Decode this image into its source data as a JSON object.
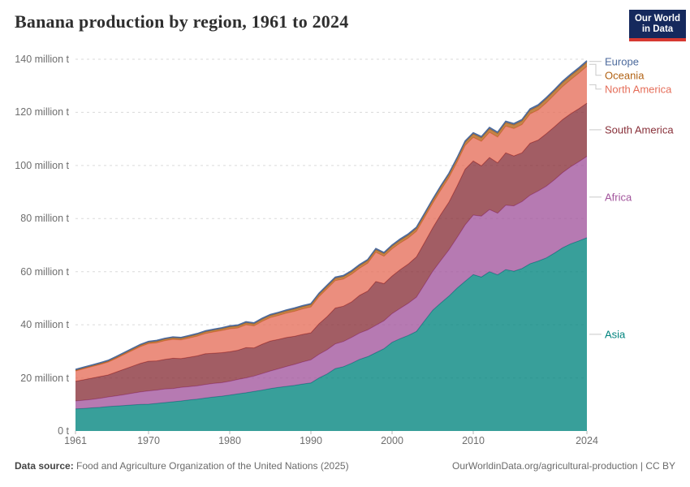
{
  "title": "Banana production by region, 1961 to 2024",
  "logo": {
    "line1": "Our World",
    "line2": "in Data"
  },
  "footer": {
    "source_label": "Data source:",
    "source_text": " Food and Agriculture Organization of the United Nations (2025)",
    "attribution": "OurWorldinData.org/agricultural-production | CC BY"
  },
  "chart_data": {
    "type": "area",
    "stacked": true,
    "title": "Banana production by region, 1961 to 2024",
    "unit": "million tonnes",
    "ylim": [
      0,
      140
    ],
    "grid": "dashed horizontal gridlines every 20 million t",
    "legend_position": "right edge, labels colored by series, top-to-bottom Europe/Oceania/North America/South America/Africa/Asia",
    "y_ticks": [
      {
        "value": 0,
        "label": "0 t"
      },
      {
        "value": 20,
        "label": "20 million t"
      },
      {
        "value": 40,
        "label": "40 million t"
      },
      {
        "value": 60,
        "label": "60 million t"
      },
      {
        "value": 80,
        "label": "80 million t"
      },
      {
        "value": 100,
        "label": "100 million t"
      },
      {
        "value": 120,
        "label": "120 million t"
      },
      {
        "value": 140,
        "label": "140 million t"
      }
    ],
    "x_ticks": [
      1961,
      1970,
      1980,
      1990,
      2000,
      2010,
      2024
    ],
    "years": [
      1961,
      1962,
      1963,
      1964,
      1965,
      1966,
      1967,
      1968,
      1969,
      1970,
      1971,
      1972,
      1973,
      1974,
      1975,
      1976,
      1977,
      1978,
      1979,
      1980,
      1981,
      1982,
      1983,
      1984,
      1985,
      1986,
      1987,
      1988,
      1989,
      1990,
      1991,
      1992,
      1993,
      1994,
      1995,
      1996,
      1997,
      1998,
      1999,
      2000,
      2001,
      2002,
      2003,
      2004,
      2005,
      2006,
      2007,
      2008,
      2009,
      2010,
      2011,
      2012,
      2013,
      2014,
      2015,
      2016,
      2017,
      2018,
      2019,
      2020,
      2021,
      2022,
      2023,
      2024
    ],
    "series": [
      {
        "name": "Asia",
        "color": "#00847E",
        "values": [
          8.3,
          8.5,
          8.7,
          8.9,
          9.2,
          9.4,
          9.6,
          9.8,
          10.0,
          10.1,
          10.4,
          10.7,
          11.0,
          11.3,
          11.7,
          12.0,
          12.4,
          12.8,
          13.1,
          13.5,
          14.0,
          14.4,
          14.9,
          15.4,
          16.0,
          16.4,
          16.8,
          17.2,
          17.7,
          18.1,
          20.0,
          21.5,
          23.5,
          24.2,
          25.5,
          27.0,
          28.0,
          29.5,
          31.0,
          33.4,
          34.8,
          36.0,
          37.5,
          41.5,
          45.5,
          48.2,
          50.8,
          53.8,
          56.4,
          58.9,
          58.0,
          60.0,
          58.8,
          60.8,
          60.2,
          61.2,
          63.0,
          64.0,
          65.2,
          67.0,
          69.0,
          70.5,
          71.6,
          72.8
        ]
      },
      {
        "name": "Africa",
        "color": "#A2559C",
        "values": [
          3.0,
          3.1,
          3.2,
          3.4,
          3.6,
          3.8,
          4.1,
          4.4,
          4.7,
          5.0,
          5.0,
          5.1,
          5.0,
          5.1,
          5.0,
          5.0,
          5.1,
          5.1,
          5.1,
          5.2,
          5.4,
          5.6,
          5.8,
          6.2,
          6.6,
          7.0,
          7.5,
          7.9,
          8.3,
          8.7,
          8.9,
          9.1,
          9.3,
          9.5,
          9.7,
          9.9,
          10.1,
          10.3,
          10.5,
          10.8,
          11.4,
          12.1,
          12.9,
          13.7,
          14.6,
          16.0,
          17.4,
          19.0,
          21.2,
          22.4,
          22.9,
          23.4,
          23.2,
          24.2,
          24.6,
          25.2,
          25.8,
          26.4,
          27.0,
          27.6,
          28.3,
          29.0,
          29.8,
          30.6
        ]
      },
      {
        "name": "South America",
        "color": "#883039",
        "values": [
          7.4,
          7.7,
          8.0,
          8.2,
          8.3,
          9.0,
          9.6,
          10.2,
          10.8,
          11.2,
          11.0,
          11.2,
          11.4,
          10.9,
          11.1,
          11.3,
          11.6,
          11.4,
          11.3,
          11.2,
          11.0,
          11.4,
          10.6,
          11.1,
          11.3,
          11.1,
          10.9,
          10.6,
          10.4,
          10.2,
          11.5,
          12.5,
          13.5,
          13.3,
          13.4,
          14.2,
          14.6,
          16.5,
          14.0,
          14.2,
          14.6,
          14.8,
          15.2,
          15.8,
          16.4,
          17.4,
          18.0,
          19.4,
          21.0,
          20.4,
          19.0,
          19.6,
          19.0,
          19.8,
          18.8,
          18.4,
          19.6,
          19.2,
          19.8,
          20.0,
          20.0,
          20.0,
          20.0,
          20.1
        ]
      },
      {
        "name": "North America",
        "color": "#E56E5A",
        "values": [
          3.9,
          4.1,
          4.3,
          4.5,
          4.8,
          5.1,
          5.5,
          5.9,
          6.3,
          6.6,
          6.8,
          7.0,
          7.1,
          7.0,
          7.2,
          7.4,
          7.6,
          8.0,
          8.3,
          8.6,
          8.4,
          8.6,
          8.3,
          8.6,
          8.8,
          9.0,
          9.2,
          9.4,
          9.6,
          9.7,
          10.2,
          10.5,
          10.3,
          10.2,
          10.4,
          10.2,
          10.5,
          11.0,
          10.3,
          10.2,
          10.0,
          9.8,
          9.6,
          9.4,
          9.2,
          9.1,
          9.2,
          9.0,
          8.9,
          8.9,
          9.2,
          9.5,
          9.7,
          10.0,
          10.3,
          10.6,
          11.0,
          11.3,
          11.6,
          12.0,
          12.4,
          12.8,
          13.3,
          13.8
        ]
      },
      {
        "name": "Oceania",
        "color": "#B16214",
        "values": [
          0.3,
          0.32,
          0.34,
          0.37,
          0.4,
          0.43,
          0.46,
          0.49,
          0.52,
          0.55,
          0.57,
          0.59,
          0.61,
          0.63,
          0.65,
          0.67,
          0.69,
          0.71,
          0.73,
          0.75,
          0.76,
          0.78,
          0.79,
          0.81,
          0.82,
          0.84,
          0.85,
          0.87,
          0.88,
          0.9,
          0.91,
          0.93,
          0.94,
          0.96,
          0.97,
          0.99,
          1.0,
          1.02,
          1.03,
          1.05,
          1.07,
          1.1,
          1.12,
          1.15,
          1.17,
          1.2,
          1.22,
          1.25,
          1.27,
          1.3,
          1.32,
          1.34,
          1.36,
          1.38,
          1.4,
          1.42,
          1.44,
          1.46,
          1.48,
          1.5,
          1.52,
          1.55,
          1.57,
          1.6
        ]
      },
      {
        "name": "Europe",
        "color": "#4C6A9C",
        "values": [
          0.3,
          0.3,
          0.3,
          0.3,
          0.3,
          0.3,
          0.3,
          0.3,
          0.3,
          0.3,
          0.33,
          0.33,
          0.33,
          0.33,
          0.33,
          0.33,
          0.33,
          0.33,
          0.33,
          0.33,
          0.36,
          0.36,
          0.36,
          0.36,
          0.36,
          0.36,
          0.36,
          0.36,
          0.36,
          0.36,
          0.4,
          0.4,
          0.4,
          0.4,
          0.4,
          0.4,
          0.4,
          0.4,
          0.4,
          0.4,
          0.44,
          0.44,
          0.44,
          0.44,
          0.44,
          0.44,
          0.44,
          0.44,
          0.44,
          0.44,
          0.48,
          0.48,
          0.48,
          0.48,
          0.48,
          0.48,
          0.48,
          0.48,
          0.48,
          0.48,
          0.52,
          0.52,
          0.54,
          0.55
        ]
      }
    ]
  }
}
